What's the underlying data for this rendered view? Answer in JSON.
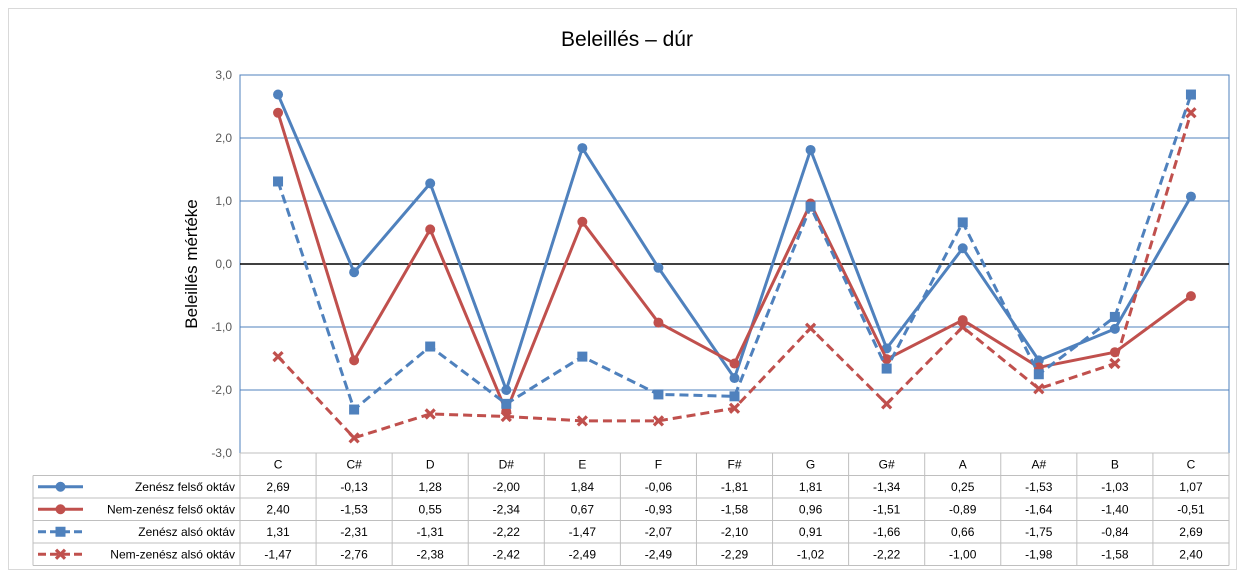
{
  "chart_data": {
    "type": "line",
    "title": "Beleillés – dúr",
    "xlabel": "",
    "ylabel": "Beleillés mértéke",
    "ylim": [
      -3.0,
      3.0
    ],
    "yticks": [
      "3,0",
      "2,0",
      "1,0",
      "0,0",
      "-1,0",
      "-2,0",
      "-3,0"
    ],
    "grid": true,
    "legend": "data-table-left",
    "categories": [
      "C",
      "C#",
      "D",
      "D#",
      "E",
      "F",
      "F#",
      "G",
      "G#",
      "A",
      "A#",
      "B",
      "C"
    ],
    "series": [
      {
        "name": "Zenész felső oktáv",
        "color": "#4f81bd",
        "dash": "solid",
        "marker": "circle",
        "values": [
          2.69,
          -0.13,
          1.28,
          -2.0,
          1.84,
          -0.06,
          -1.81,
          1.81,
          -1.34,
          0.25,
          -1.53,
          -1.03,
          1.07
        ],
        "labels": [
          "2,69",
          "-0,13",
          "1,28",
          "-2,00",
          "1,84",
          "-0,06",
          "-1,81",
          "1,81",
          "-1,34",
          "0,25",
          "-1,53",
          "-1,03",
          "1,07"
        ]
      },
      {
        "name": "Nem-zenész felső oktáv",
        "color": "#c0504d",
        "dash": "solid",
        "marker": "circle",
        "values": [
          2.4,
          -1.53,
          0.55,
          -2.34,
          0.67,
          -0.93,
          -1.58,
          0.96,
          -1.51,
          -0.89,
          -1.64,
          -1.4,
          -0.51
        ],
        "labels": [
          "2,40",
          "-1,53",
          "0,55",
          "-2,34",
          "0,67",
          "-0,93",
          "-1,58",
          "0,96",
          "-1,51",
          "-0,89",
          "-1,64",
          "-1,40",
          "-0,51"
        ]
      },
      {
        "name": "Zenész alsó oktáv",
        "color": "#4f81bd",
        "dash": "dashed",
        "marker": "square",
        "values": [
          1.31,
          -2.31,
          -1.31,
          -2.22,
          -1.47,
          -2.07,
          -2.1,
          0.91,
          -1.66,
          0.66,
          -1.75,
          -0.84,
          2.69
        ],
        "labels": [
          "1,31",
          "-2,31",
          "-1,31",
          "-2,22",
          "-1,47",
          "-2,07",
          "-2,10",
          "0,91",
          "-1,66",
          "0,66",
          "-1,75",
          "-0,84",
          "2,69"
        ]
      },
      {
        "name": "Nem-zenész alsó oktáv",
        "color": "#c0504d",
        "dash": "dashed",
        "marker": "x",
        "values": [
          -1.47,
          -2.76,
          -2.38,
          -2.42,
          -2.49,
          -2.49,
          -2.29,
          -1.02,
          -2.22,
          -1.0,
          -1.98,
          -1.58,
          2.4
        ],
        "labels": [
          "-1,47",
          "-2,76",
          "-2,38",
          "-2,42",
          "-2,49",
          "-2,49",
          "-2,29",
          "-1,02",
          "-2,22",
          "-1,00",
          "-1,98",
          "-1,58",
          "2,40"
        ]
      }
    ]
  }
}
